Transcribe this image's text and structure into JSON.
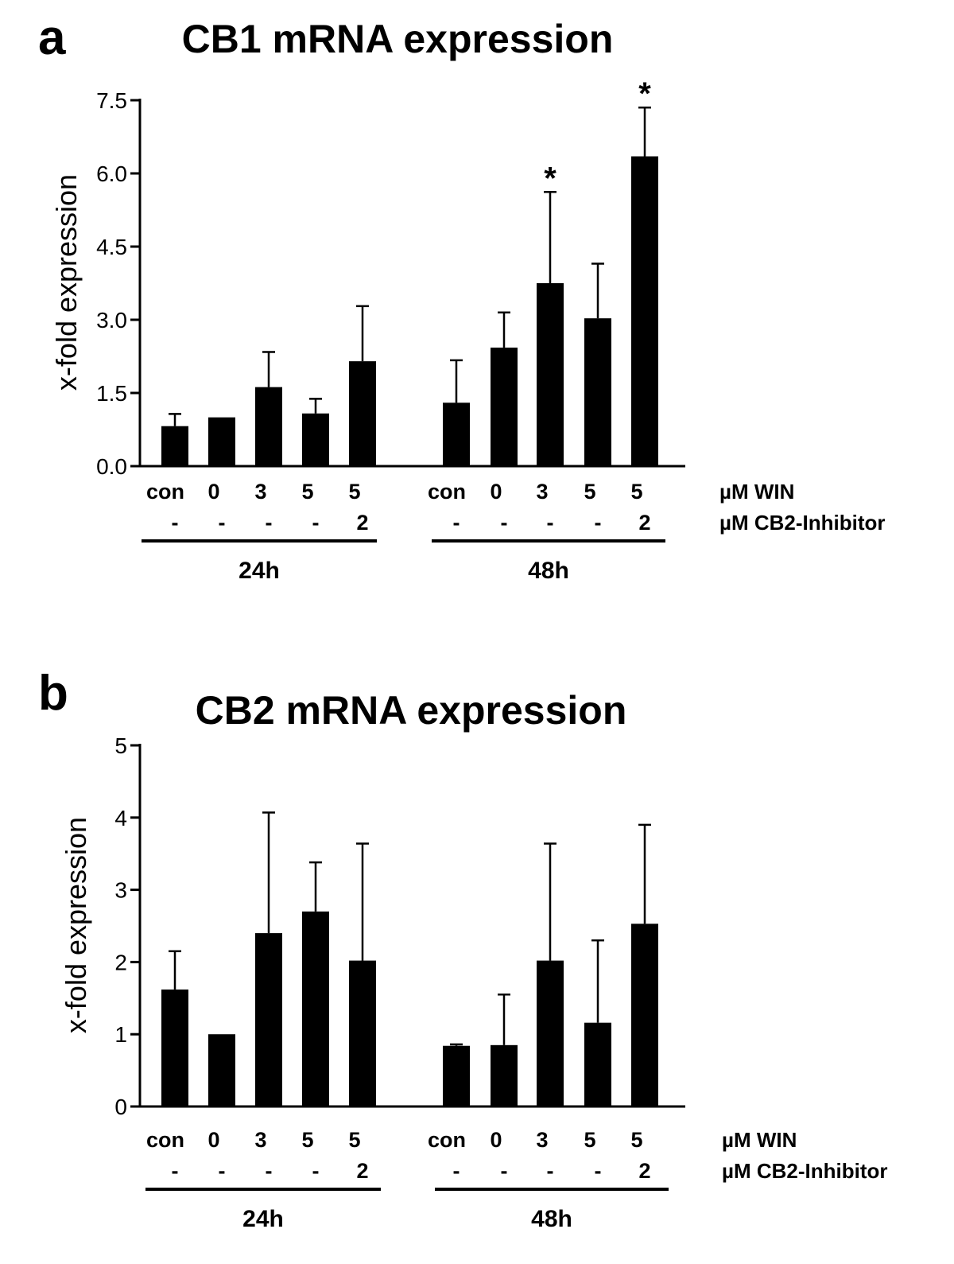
{
  "chart_data": [
    {
      "type": "bar",
      "panel": "a",
      "title": "CB1 mRNA expression",
      "xlabel": "",
      "ylabel": "x-fold expression",
      "ylim": [
        0,
        7.5
      ],
      "yticks": [
        "0.0",
        "1.5",
        "3.0",
        "4.5",
        "6.0",
        "7.5"
      ],
      "grid": false,
      "legend": "none",
      "bar_color": "#000000",
      "win_row_label": "µM WIN",
      "inhibitor_row_label": "µM CB2-Inhibitor",
      "groups": [
        {
          "label": "24h",
          "bars": [
            {
              "win": "con",
              "inhibitor": "-",
              "value": 0.82,
              "error": 0.25,
              "sig": ""
            },
            {
              "win": "0",
              "inhibitor": "-",
              "value": 1.0,
              "error": 0,
              "sig": ""
            },
            {
              "win": "3",
              "inhibitor": "-",
              "value": 1.62,
              "error": 0.72,
              "sig": ""
            },
            {
              "win": "5",
              "inhibitor": "-",
              "value": 1.08,
              "error": 0.3,
              "sig": ""
            },
            {
              "win": "5",
              "inhibitor": "2",
              "value": 2.15,
              "error": 1.13,
              "sig": ""
            }
          ]
        },
        {
          "label": "48h",
          "bars": [
            {
              "win": "con",
              "inhibitor": "-",
              "value": 1.3,
              "error": 0.87,
              "sig": ""
            },
            {
              "win": "0",
              "inhibitor": "-",
              "value": 2.43,
              "error": 0.72,
              "sig": ""
            },
            {
              "win": "3",
              "inhibitor": "-",
              "value": 3.75,
              "error": 1.87,
              "sig": "*"
            },
            {
              "win": "5",
              "inhibitor": "-",
              "value": 3.03,
              "error": 1.12,
              "sig": ""
            },
            {
              "win": "5",
              "inhibitor": "2",
              "value": 6.35,
              "error": 1.0,
              "sig": "*"
            }
          ]
        }
      ]
    },
    {
      "type": "bar",
      "panel": "b",
      "title": "CB2 mRNA expression",
      "xlabel": "",
      "ylabel": "x-fold expression",
      "ylim": [
        0,
        5
      ],
      "yticks": [
        "0",
        "1",
        "2",
        "3",
        "4",
        "5"
      ],
      "grid": false,
      "legend": "none",
      "bar_color": "#000000",
      "win_row_label": "µM WIN",
      "inhibitor_row_label": "µM CB2-Inhibitor",
      "groups": [
        {
          "label": "24h",
          "bars": [
            {
              "win": "con",
              "inhibitor": "-",
              "value": 1.62,
              "error": 0.53,
              "sig": ""
            },
            {
              "win": "0",
              "inhibitor": "-",
              "value": 1.0,
              "error": 0,
              "sig": ""
            },
            {
              "win": "3",
              "inhibitor": "-",
              "value": 2.4,
              "error": 1.67,
              "sig": ""
            },
            {
              "win": "5",
              "inhibitor": "-",
              "value": 2.7,
              "error": 0.68,
              "sig": ""
            },
            {
              "win": "5",
              "inhibitor": "2",
              "value": 2.02,
              "error": 1.62,
              "sig": ""
            }
          ]
        },
        {
          "label": "48h",
          "bars": [
            {
              "win": "con",
              "inhibitor": "-",
              "value": 0.84,
              "error": 0.02,
              "sig": ""
            },
            {
              "win": "0",
              "inhibitor": "-",
              "value": 0.85,
              "error": 0.7,
              "sig": ""
            },
            {
              "win": "3",
              "inhibitor": "-",
              "value": 2.02,
              "error": 1.62,
              "sig": ""
            },
            {
              "win": "5",
              "inhibitor": "-",
              "value": 1.16,
              "error": 1.14,
              "sig": ""
            },
            {
              "win": "5",
              "inhibitor": "2",
              "value": 2.53,
              "error": 1.37,
              "sig": ""
            }
          ]
        }
      ]
    }
  ]
}
